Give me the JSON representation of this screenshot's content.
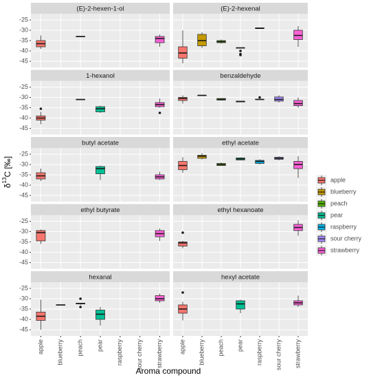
{
  "chart_data": {
    "type": "boxplot",
    "xlabel": "Aroma compound",
    "ylabel": {
      "prefix": "δ",
      "sup": "13",
      "suffix": "C [‰]"
    },
    "categories": [
      "apple",
      "blueberry",
      "peach",
      "pear",
      "raspberry",
      "sour cherry",
      "strawberry"
    ],
    "colors": [
      "#F8766D",
      "#C49A00",
      "#53B400",
      "#00C094",
      "#00B6EB",
      "#A58AFF",
      "#FB61D7"
    ],
    "ylim": [
      -48,
      -22
    ],
    "yticks": [
      -25,
      -30,
      -35,
      -40,
      -45
    ],
    "grid": true,
    "legend": "right",
    "panels": [
      {
        "title": "(E)-2-hexen-1-ol",
        "min": [
          -39,
          null,
          -33,
          null,
          null,
          null,
          -38
        ],
        "q1": [
          -38,
          null,
          -33,
          null,
          null,
          null,
          -36
        ],
        "median": [
          -36.5,
          null,
          -33,
          null,
          null,
          null,
          -34
        ],
        "q3": [
          -35,
          null,
          -33,
          null,
          null,
          null,
          -33
        ],
        "max": [
          -32.5,
          null,
          -33,
          null,
          null,
          null,
          -32
        ],
        "outliers": [
          [],
          [],
          [],
          [],
          [],
          [],
          []
        ]
      },
      {
        "title": "(E)-2-hexenal",
        "min": [
          -46,
          -38.5,
          -36.5,
          -38.5,
          -29.3,
          null,
          -38
        ],
        "q1": [
          -43.5,
          -37.5,
          -36,
          -38.5,
          -29.2,
          null,
          -34.5
        ],
        "median": [
          -41,
          -35,
          -35.5,
          -38.5,
          -29,
          null,
          -32.5
        ],
        "q3": [
          -38,
          -32,
          -35,
          -38.5,
          -28.8,
          null,
          -30
        ],
        "max": [
          -30,
          -31,
          -34.5,
          -38.5,
          -28.7,
          null,
          -28
        ],
        "outliers": [
          [],
          [],
          [],
          [
            -40,
            -41.5,
            -42
          ],
          [],
          [],
          []
        ]
      },
      {
        "title": "1-hexanol",
        "min": [
          -43,
          null,
          -31,
          -37.5,
          null,
          null,
          -35
        ],
        "q1": [
          -41,
          null,
          -31,
          -37,
          null,
          null,
          -34.5
        ],
        "median": [
          -40,
          null,
          -31,
          -35.5,
          null,
          null,
          -33.5
        ],
        "q3": [
          -39,
          null,
          -31,
          -34.5,
          null,
          null,
          -32.5
        ],
        "max": [
          -37,
          null,
          -31,
          -34,
          null,
          null,
          -30.5
        ],
        "outliers": [
          [
            -35.5
          ],
          [],
          [],
          [],
          [],
          [],
          [
            -37.5
          ]
        ]
      },
      {
        "title": "benzaldehyde",
        "min": [
          -33,
          -29,
          -31.5,
          -32.2,
          -31.2,
          -32.5,
          -35
        ],
        "q1": [
          -31.5,
          -29,
          -31.3,
          -32.2,
          -31.1,
          -31.8,
          -34
        ],
        "median": [
          -30.5,
          -29,
          -31,
          -32,
          -31,
          -31,
          -33
        ],
        "q3": [
          -30,
          -29,
          -30.5,
          -31.8,
          -30.9,
          -29.8,
          -31.5
        ],
        "max": [
          -29,
          -29,
          -30.5,
          -31.8,
          -30.8,
          -29,
          -30
        ],
        "outliers": [
          [],
          [],
          [],
          [],
          [
            -30
          ],
          [],
          []
        ]
      },
      {
        "title": "butyl acetate",
        "min": [
          -38,
          null,
          null,
          -37.5,
          null,
          null,
          -37.5
        ],
        "q1": [
          -37,
          null,
          null,
          -34.5,
          null,
          null,
          -37
        ],
        "median": [
          -35.5,
          null,
          null,
          -32,
          null,
          null,
          -36
        ],
        "q3": [
          -34,
          null,
          null,
          -31,
          null,
          null,
          -35
        ],
        "max": [
          -32,
          null,
          null,
          -30.5,
          null,
          null,
          -33.5
        ],
        "outliers": [
          [],
          [],
          [],
          [],
          [],
          [],
          []
        ]
      },
      {
        "title": "ethyl acetate",
        "min": [
          -34,
          -27.5,
          -30.5,
          -28,
          -30,
          -28,
          -36.5
        ],
        "q1": [
          -32.5,
          -27,
          -30.5,
          -27.8,
          -29.5,
          -27.5,
          -32
        ],
        "median": [
          -30.5,
          -26,
          -30,
          -27.3,
          -28.5,
          -27,
          -30
        ],
        "q3": [
          -28.5,
          -25.5,
          -29.5,
          -26.8,
          -28,
          -26.5,
          -28.5
        ],
        "max": [
          -26.5,
          -24.5,
          -29,
          -26.5,
          -27.5,
          -26,
          -26
        ],
        "outliers": [
          [],
          [],
          [],
          [],
          [],
          [],
          []
        ]
      },
      {
        "title": "ethyl butyrate",
        "min": [
          -36,
          null,
          null,
          null,
          null,
          null,
          -34.5
        ],
        "q1": [
          -34.5,
          null,
          null,
          null,
          null,
          null,
          -32.5
        ],
        "median": [
          -30.5,
          null,
          null,
          null,
          null,
          null,
          -31
        ],
        "q3": [
          -29.5,
          null,
          null,
          null,
          null,
          null,
          -29.5
        ],
        "max": [
          -29,
          null,
          null,
          null,
          null,
          null,
          -28.5
        ],
        "outliers": [
          [],
          [],
          [],
          [],
          [],
          [],
          []
        ]
      },
      {
        "title": "ethyl hexanoate",
        "min": [
          -38,
          null,
          null,
          null,
          null,
          null,
          -32
        ],
        "q1": [
          -37,
          null,
          null,
          null,
          null,
          null,
          -29.5
        ],
        "median": [
          -35.5,
          null,
          null,
          null,
          null,
          null,
          -28
        ],
        "q3": [
          -35,
          null,
          null,
          null,
          null,
          null,
          -26.5
        ],
        "max": [
          -34.5,
          null,
          null,
          null,
          null,
          null,
          -24.5
        ],
        "outliers": [
          [
            -30.5
          ],
          [],
          [],
          [],
          [],
          [],
          []
        ]
      },
      {
        "title": "hexanal",
        "min": [
          -45,
          -33,
          -33,
          -43,
          null,
          null,
          -32
        ],
        "q1": [
          -40.5,
          -33,
          -32.5,
          -40,
          null,
          null,
          -31
        ],
        "median": [
          -38.5,
          -33,
          -32.3,
          -37.5,
          null,
          null,
          -30
        ],
        "q3": [
          -36.5,
          -33,
          -32.2,
          -35.5,
          null,
          null,
          -28.5
        ],
        "max": [
          -30.5,
          -33,
          -32,
          -34,
          null,
          null,
          -27.5
        ],
        "outliers": [
          [],
          [],
          [
            -30,
            -34
          ],
          [],
          [],
          [],
          []
        ]
      },
      {
        "title": "hexyl acetate",
        "min": [
          -40.5,
          null,
          null,
          -37,
          null,
          null,
          -34
        ],
        "q1": [
          -37,
          null,
          null,
          -35,
          null,
          null,
          -33
        ],
        "median": [
          -35,
          null,
          null,
          -32.5,
          null,
          null,
          -32
        ],
        "q3": [
          -33,
          null,
          null,
          -31,
          null,
          null,
          -31
        ],
        "max": [
          -31.5,
          null,
          null,
          -30.5,
          null,
          null,
          -28.5
        ],
        "outliers": [
          [
            -27
          ],
          [],
          [],
          [],
          [],
          [],
          []
        ]
      }
    ]
  }
}
